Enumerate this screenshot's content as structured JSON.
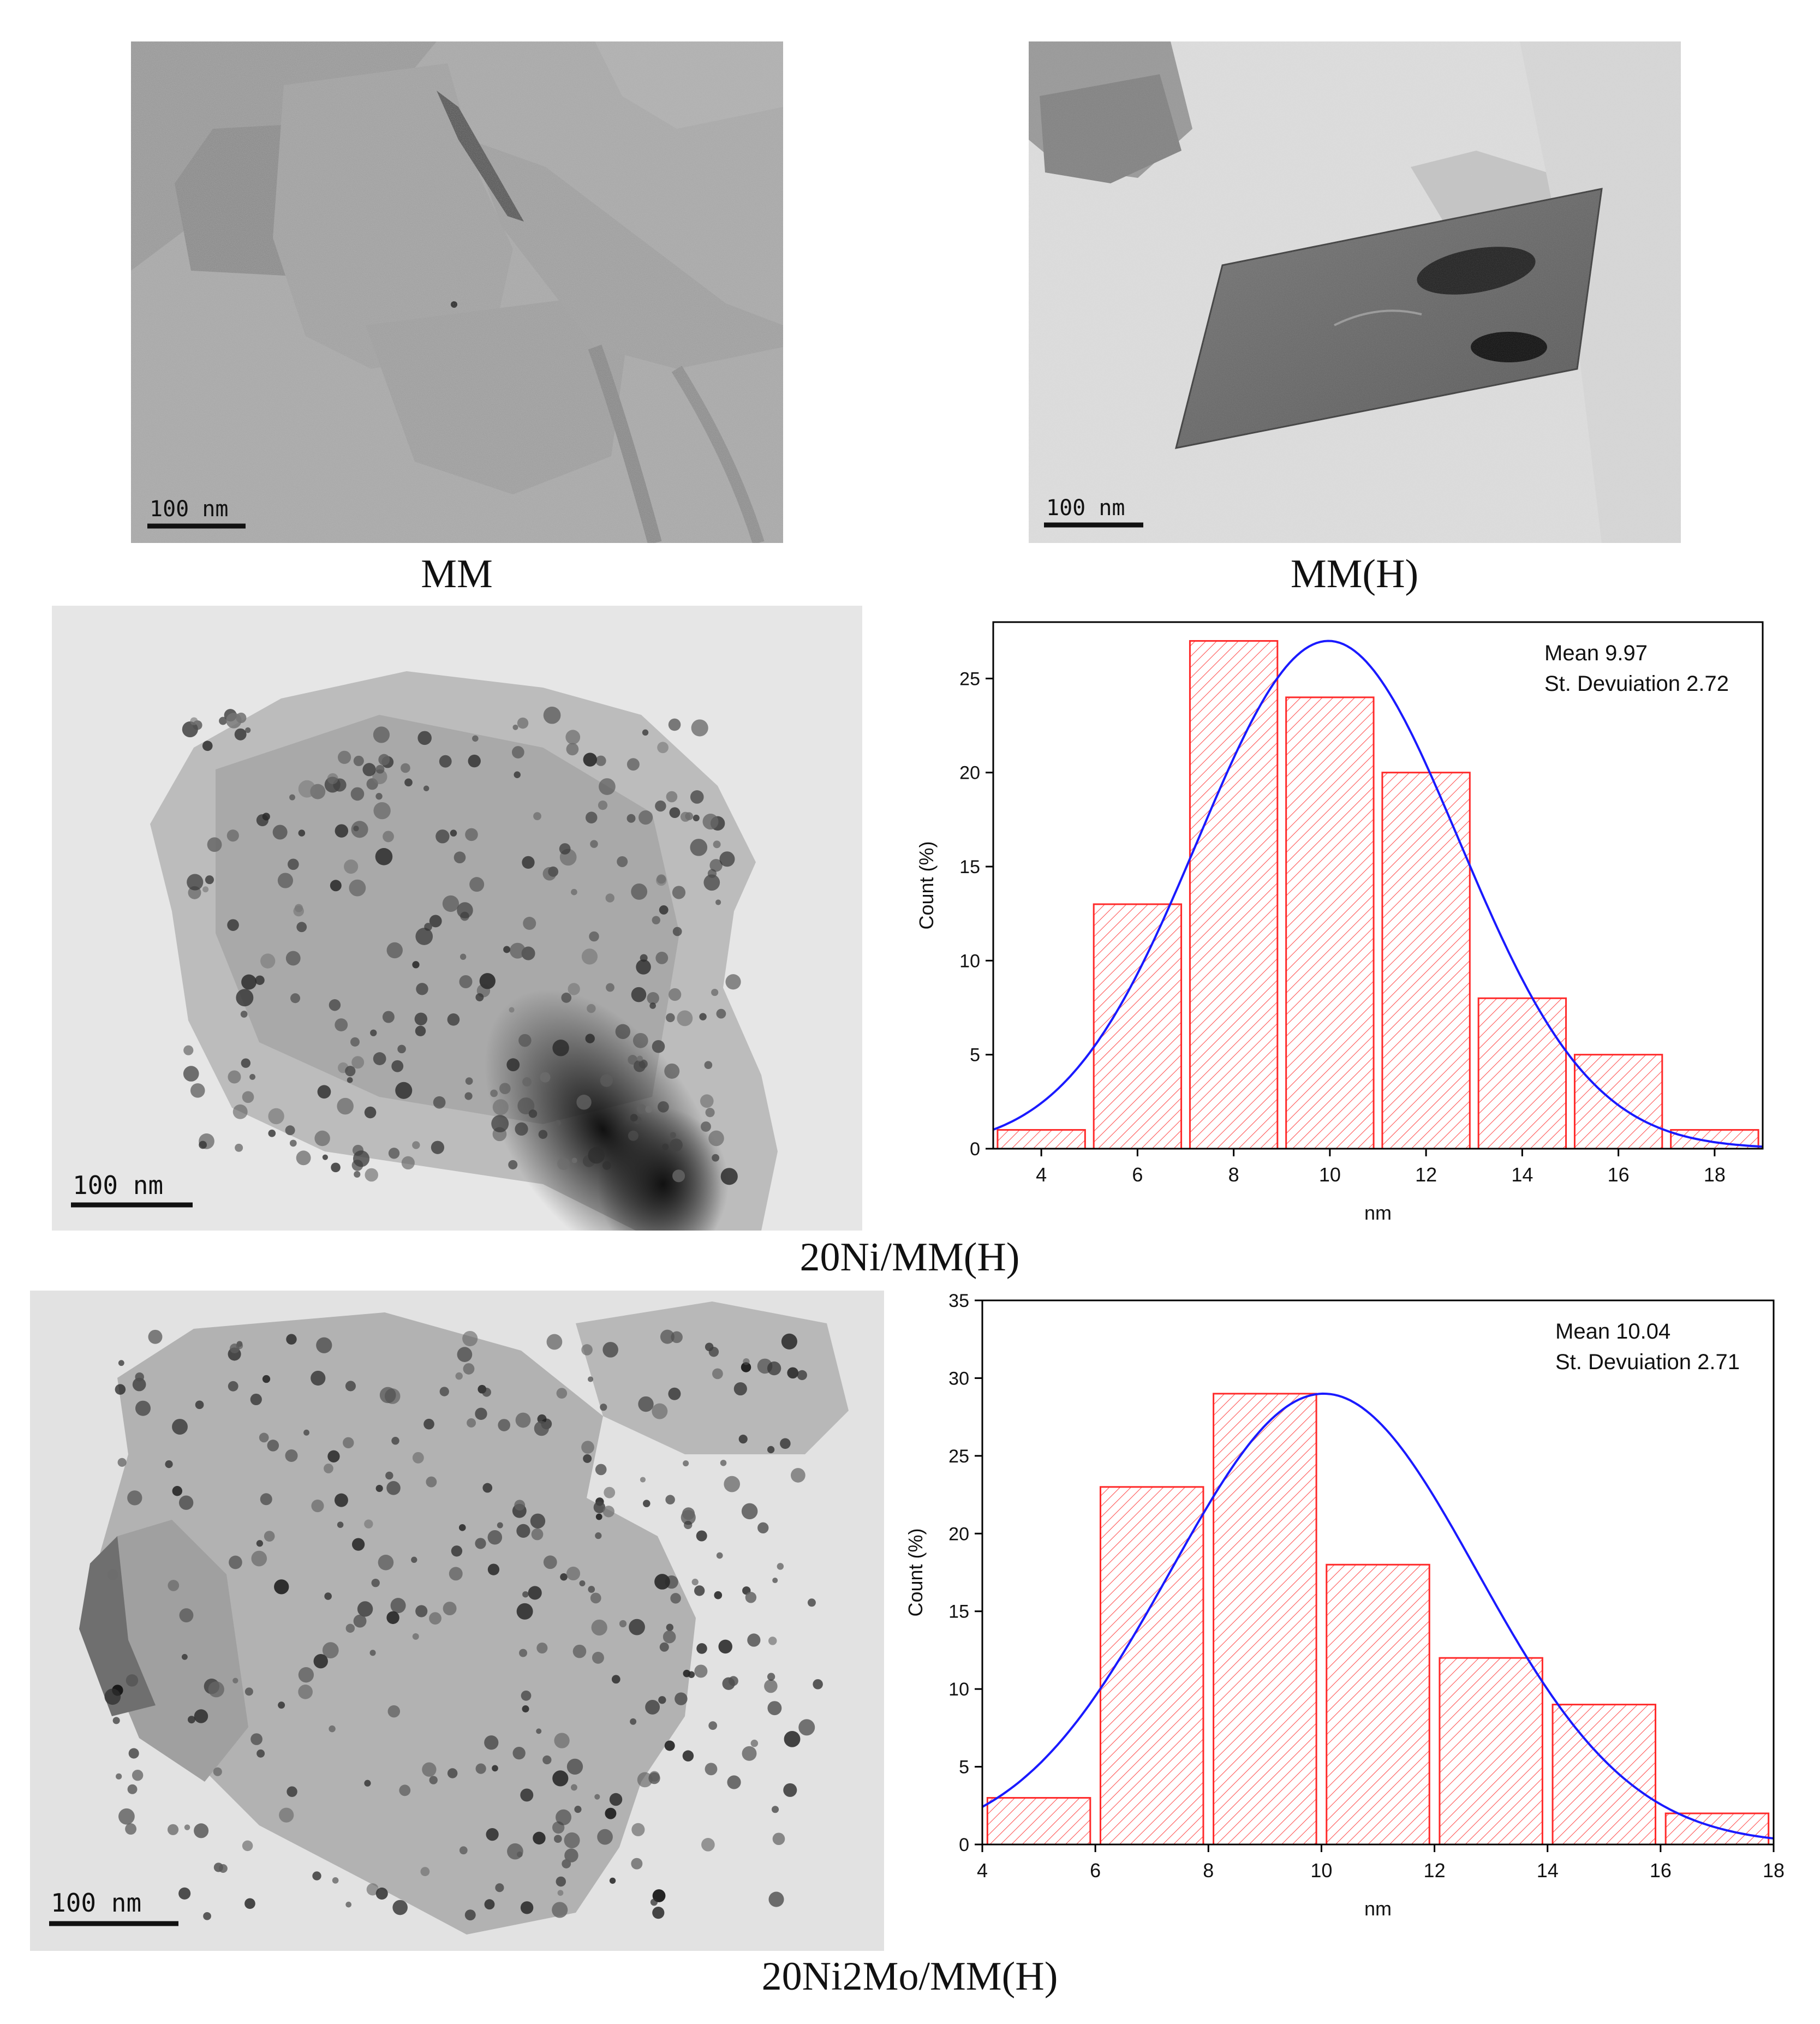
{
  "panels": [
    {
      "id": "mm",
      "caption": "MM",
      "scale_bar_label": "100 nm"
    },
    {
      "id": "mmh",
      "caption": "MM(H)",
      "scale_bar_label": "100 nm"
    },
    {
      "id": "ni",
      "caption": "20Ni/MM(H)",
      "scale_bar_label": "100 nm"
    },
    {
      "id": "nimo",
      "caption": "20Ni2Mo/MM(H)",
      "scale_bar_label": "100 nm"
    }
  ],
  "colors": {
    "bar_edge": "#ff2a2a",
    "bar_hatch": "#ff5555",
    "fit_curve": "#1a1aff",
    "axis": "#000000"
  },
  "chart_data": [
    {
      "type": "bar",
      "subtype": "histogram-with-normal-fit",
      "xlabel": "nm",
      "ylabel": "Count (%)",
      "xlim": [
        3,
        19
      ],
      "ylim": [
        0,
        28
      ],
      "xticks": [
        4,
        6,
        8,
        10,
        12,
        14,
        16,
        18
      ],
      "yticks": [
        0,
        5,
        10,
        15,
        20,
        25
      ],
      "bins": [
        {
          "x0": 3,
          "x1": 5,
          "value": 1
        },
        {
          "x0": 5,
          "x1": 7,
          "value": 13
        },
        {
          "x0": 7,
          "x1": 9,
          "value": 27
        },
        {
          "x0": 9,
          "x1": 11,
          "value": 24
        },
        {
          "x0": 11,
          "x1": 13,
          "value": 20
        },
        {
          "x0": 13,
          "x1": 15,
          "value": 8
        },
        {
          "x0": 15,
          "x1": 17,
          "value": 5
        },
        {
          "x0": 17,
          "x1": 19,
          "value": 1
        }
      ],
      "fit": {
        "mean": 9.97,
        "sd": 2.72,
        "peak": 27
      },
      "annotations": [
        "Mean 9.97",
        "St. Devuiation 2.72"
      ],
      "grid": false
    },
    {
      "type": "bar",
      "subtype": "histogram-with-normal-fit",
      "xlabel": "nm",
      "ylabel": "Count (%)",
      "xlim": [
        4,
        18
      ],
      "ylim": [
        0,
        35
      ],
      "xticks": [
        4,
        6,
        8,
        10,
        12,
        14,
        16,
        18
      ],
      "yticks": [
        0,
        5,
        10,
        15,
        20,
        25,
        30,
        35
      ],
      "bins": [
        {
          "x0": 4,
          "x1": 6,
          "value": 3
        },
        {
          "x0": 6,
          "x1": 8,
          "value": 23
        },
        {
          "x0": 8,
          "x1": 10,
          "value": 29
        },
        {
          "x0": 10,
          "x1": 12,
          "value": 18
        },
        {
          "x0": 12,
          "x1": 14,
          "value": 12
        },
        {
          "x0": 14,
          "x1": 16,
          "value": 9
        },
        {
          "x0": 16,
          "x1": 18,
          "value": 2
        }
      ],
      "fit": {
        "mean": 10.04,
        "sd": 2.71,
        "peak": 29
      },
      "annotations": [
        "Mean 10.04",
        "St. Devuiation 2.71"
      ],
      "grid": false
    }
  ]
}
